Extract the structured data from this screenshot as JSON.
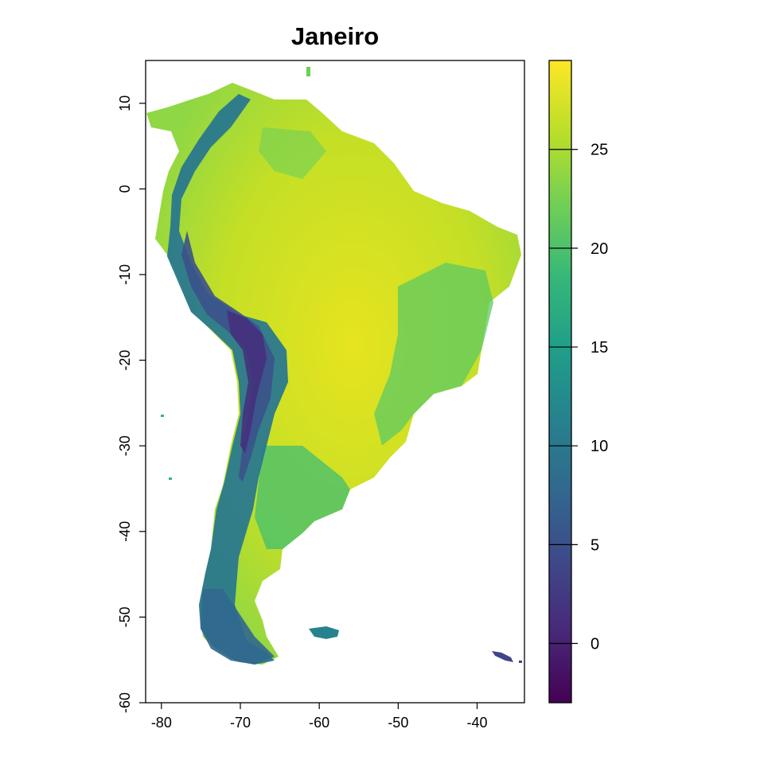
{
  "map": {
    "title": "Janeiro",
    "x_ticks": [
      "-80",
      "-70",
      "-60",
      "-50",
      "-40"
    ],
    "y_ticks": [
      "10",
      "0",
      "-10",
      "-20",
      "-30",
      "-40",
      "-50",
      "-60"
    ],
    "colorbar_ticks": [
      "0",
      "5",
      "10",
      "15",
      "20",
      "25"
    ],
    "colorbar_colors": [
      "#440154",
      "#482878",
      "#3e4989",
      "#31688e",
      "#26828e",
      "#1f9e89",
      "#35b779",
      "#6ece58",
      "#b5de2b",
      "#fde725"
    ]
  },
  "chart_data": {
    "type": "heatmap",
    "title": "Janeiro",
    "xlabel": "",
    "ylabel": "",
    "xlim": [
      -82,
      -34
    ],
    "ylim": [
      -60,
      15
    ],
    "x_ticks": [
      -80,
      -70,
      -60,
      -50,
      -40
    ],
    "y_ticks": [
      10,
      0,
      -10,
      -20,
      -30,
      -40,
      -50,
      -60
    ],
    "colorbar": {
      "min": -3,
      "max": 29.5,
      "ticks": [
        0,
        5,
        10,
        15,
        20,
        25
      ],
      "palette": "viridis"
    }
  }
}
